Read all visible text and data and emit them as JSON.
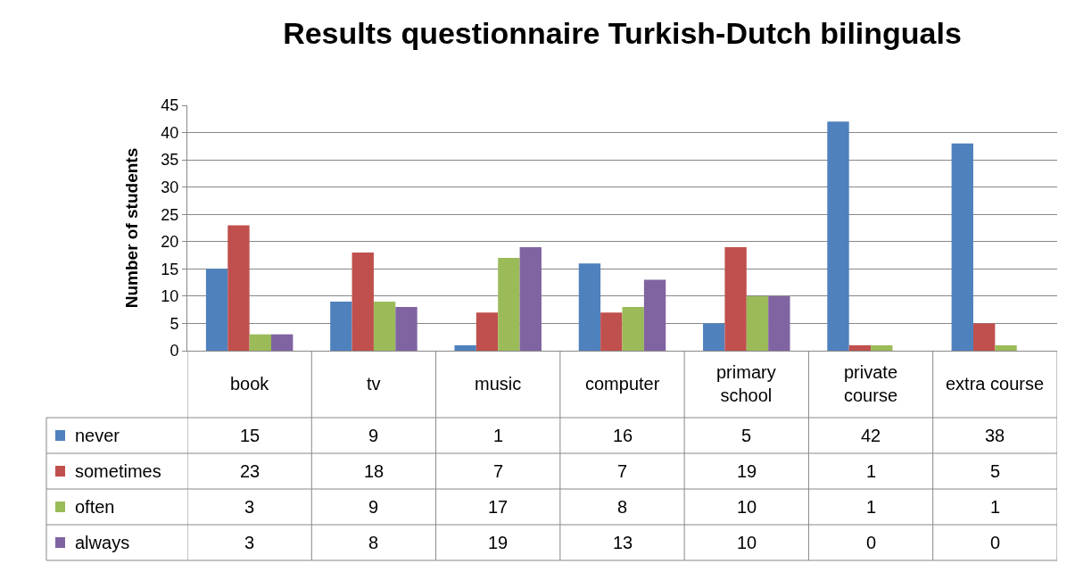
{
  "chart_data": {
    "type": "bar",
    "title": "Results questionnaire Turkish-Dutch bilinguals",
    "ylabel": "Number of students",
    "categories": [
      "book",
      "tv",
      "music",
      "computer",
      "primary school",
      "private course",
      "extra course"
    ],
    "series": [
      {
        "name": "never",
        "color": "#4f81bd",
        "values": [
          15,
          9,
          1,
          16,
          5,
          42,
          38
        ]
      },
      {
        "name": "sometimes",
        "color": "#c0504d",
        "values": [
          23,
          18,
          7,
          7,
          19,
          1,
          5
        ]
      },
      {
        "name": "often",
        "color": "#9bbb59",
        "values": [
          3,
          9,
          17,
          8,
          10,
          1,
          1
        ]
      },
      {
        "name": "always",
        "color": "#8064a2",
        "values": [
          3,
          8,
          19,
          13,
          10,
          0,
          0
        ]
      }
    ],
    "ylim": [
      0,
      45
    ],
    "yticks": [
      0,
      5,
      10,
      15,
      20,
      25,
      30,
      35,
      40,
      45
    ],
    "grid": "y",
    "data_labels": true,
    "legend": "bottom"
  }
}
